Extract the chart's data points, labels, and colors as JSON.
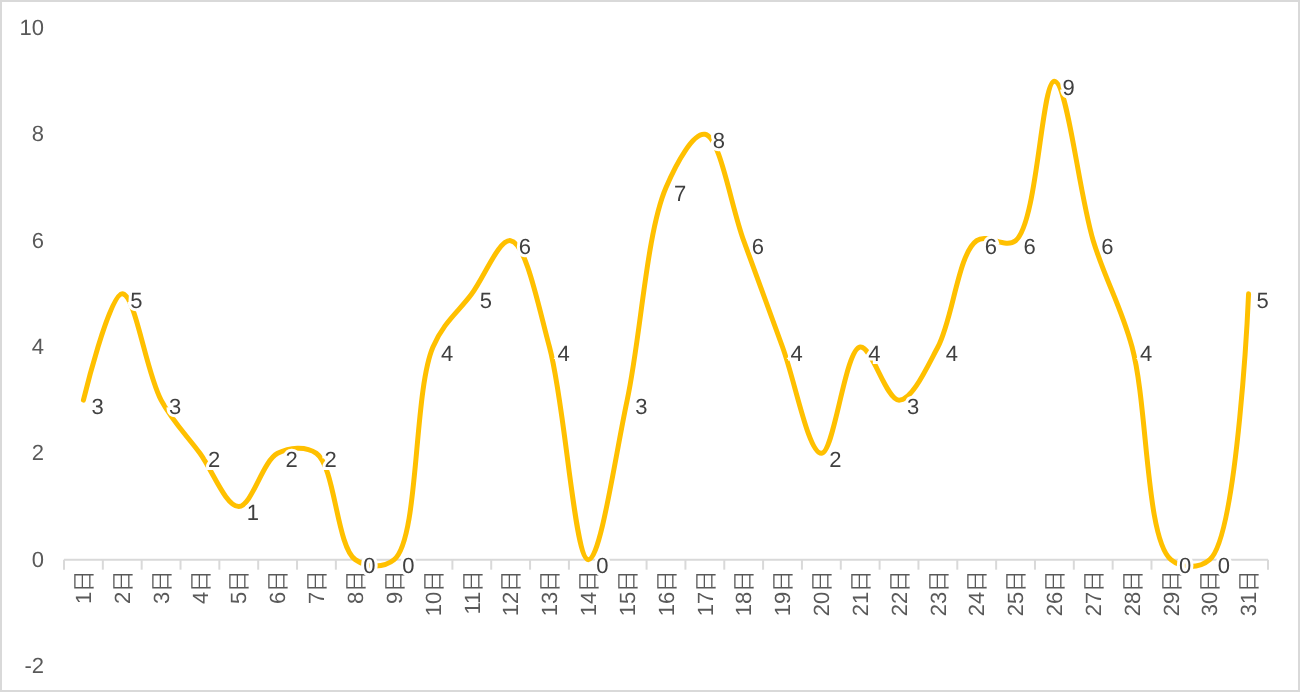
{
  "chart_data": {
    "type": "line",
    "categories": [
      "1日",
      "2日",
      "3日",
      "4日",
      "5日",
      "6日",
      "7日",
      "8日",
      "9日",
      "10日",
      "11日",
      "12日",
      "13日",
      "14日",
      "15日",
      "16日",
      "17日",
      "18日",
      "19日",
      "20日",
      "21日",
      "22日",
      "23日",
      "24日",
      "25日",
      "26日",
      "27日",
      "28日",
      "29日",
      "30日",
      "31日"
    ],
    "series": [
      {
        "color": "#ffc000",
        "values": [
          3,
          5,
          3,
          2,
          1,
          2,
          2,
          0,
          0,
          4,
          5,
          6,
          4,
          0,
          3,
          7,
          8,
          6,
          4,
          2,
          4,
          3,
          4,
          6,
          6,
          9,
          6,
          4,
          0,
          0,
          5
        ]
      }
    ],
    "ylim": [
      -2,
      10
    ],
    "yticks": [
      -2,
      0,
      2,
      4,
      6,
      8,
      10
    ],
    "data_labels": true,
    "grid": false,
    "marker": "none",
    "line_style": "solid"
  }
}
